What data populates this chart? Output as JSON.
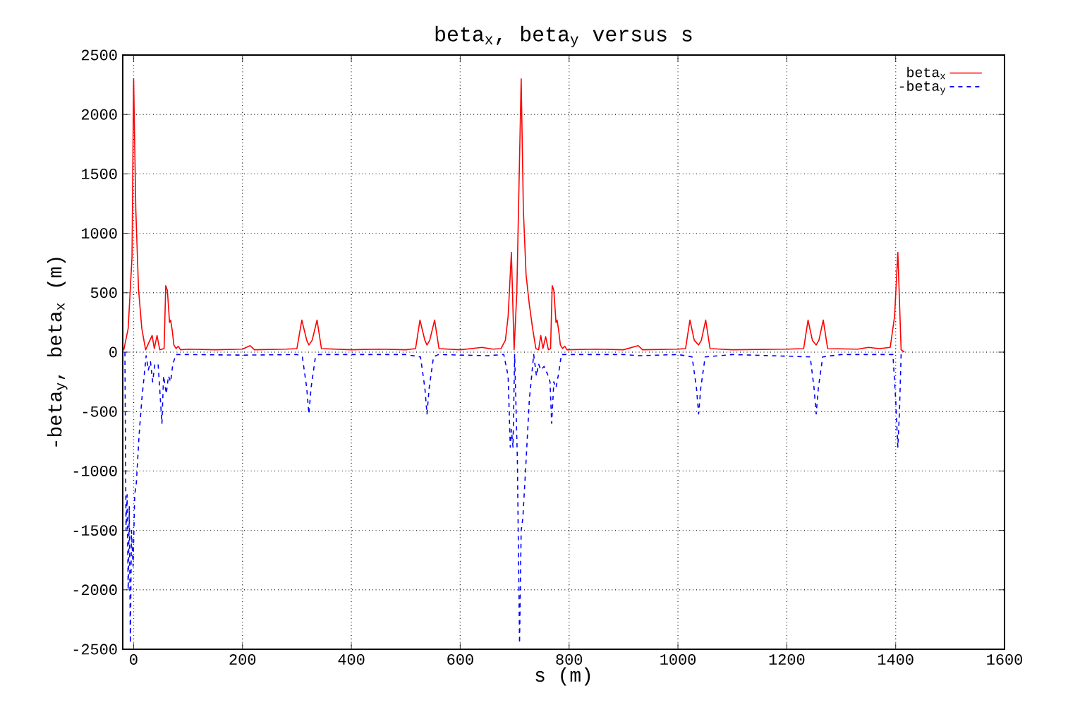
{
  "chart_data": {
    "type": "line",
    "title": "beta$_{x}$, beta$_{y}$ versus s",
    "xlabel": "s (m)",
    "ylabel": "-beta$_{y}$, beta$_{x}$ (m)",
    "xlim": [
      -20,
      1600
    ],
    "xticks": [
      0,
      200,
      400,
      600,
      800,
      1000,
      1200,
      1400,
      1600
    ],
    "ylim": [
      -2500,
      2500
    ],
    "yticks": [
      -2500,
      -2000,
      -1500,
      -1000,
      -500,
      0,
      500,
      1000,
      1500,
      2000,
      2500
    ],
    "grid": true,
    "legend": "top right",
    "series": [
      {
        "name": "beta$_{x}$",
        "color": "#ff0000",
        "line_style": "solid",
        "x": [
          -18,
          -10,
          -3,
          0,
          4,
          9,
          15,
          22,
          34,
          38,
          43,
          48,
          56,
          59,
          62,
          66,
          68,
          71,
          74,
          78,
          82,
          86,
          100,
          150,
          200,
          214,
          222,
          280,
          300,
          309,
          318,
          322,
          328,
          337,
          345,
          400,
          450,
          500,
          518,
          526,
          535,
          539,
          544,
          553,
          561,
          600,
          620,
          640,
          660,
          675,
          683,
          688,
          694,
          699,
          704,
          712,
          716,
          721,
          727,
          733,
          739,
          744,
          748,
          752,
          757,
          762,
          766,
          769,
          772,
          776,
          778,
          781,
          784,
          788,
          792,
          796,
          850,
          900,
          927,
          935,
          1000,
          1014,
          1022,
          1030,
          1038,
          1043,
          1051,
          1059,
          1100,
          1200,
          1231,
          1239,
          1247,
          1254,
          1259,
          1267,
          1275,
          1330,
          1350,
          1370,
          1390,
          1398,
          1404,
          1410,
          1416
        ],
        "values": [
          20,
          200,
          800,
          2300,
          1200,
          530,
          200,
          20,
          140,
          30,
          140,
          20,
          30,
          560,
          520,
          250,
          270,
          180,
          60,
          30,
          50,
          20,
          25,
          20,
          25,
          55,
          20,
          25,
          30,
          270,
          100,
          60,
          100,
          270,
          30,
          20,
          25,
          20,
          30,
          270,
          100,
          60,
          100,
          270,
          30,
          20,
          30,
          40,
          25,
          30,
          100,
          300,
          840,
          20,
          500,
          2300,
          1200,
          650,
          400,
          200,
          30,
          20,
          140,
          30,
          130,
          20,
          30,
          560,
          520,
          250,
          270,
          180,
          60,
          30,
          50,
          20,
          25,
          20,
          55,
          20,
          25,
          30,
          270,
          100,
          60,
          100,
          270,
          30,
          20,
          25,
          30,
          270,
          100,
          60,
          100,
          270,
          30,
          25,
          40,
          30,
          40,
          300,
          840,
          20,
          0
        ]
      },
      {
        "name": "-beta$_{y}$",
        "color": "#0000ff",
        "line_style": "dashed",
        "x": [
          -16,
          -14,
          -12,
          -10,
          -8,
          -6,
          -4,
          -1,
          2,
          5,
          10,
          15,
          23,
          27,
          31,
          35,
          39,
          45,
          52,
          55,
          60,
          64,
          68,
          72,
          78,
          100,
          200,
          300,
          310,
          318,
          322,
          326,
          334,
          340,
          500,
          527,
          535,
          539,
          543,
          551,
          560,
          650,
          680,
          688,
          692,
          694,
          697,
          700,
          705,
          709,
          712,
          715,
          720,
          727,
          735,
          740,
          744,
          748,
          754,
          760,
          765,
          768,
          772,
          776,
          780,
          786,
          900,
          930,
          1000,
          1026,
          1034,
          1038,
          1042,
          1050,
          1100,
          1243,
          1250,
          1254,
          1258,
          1266,
          1300,
          1395,
          1400,
          1404,
          1407,
          1410,
          1412
        ],
        "values": [
          0,
          -1500,
          -1200,
          -2000,
          -1300,
          -2450,
          -1500,
          -1800,
          -1200,
          -1100,
          -700,
          -400,
          -30,
          -150,
          -80,
          -250,
          -100,
          -100,
          -600,
          -200,
          -350,
          -200,
          -250,
          -100,
          -20,
          -20,
          -25,
          -20,
          -40,
          -300,
          -520,
          -300,
          -40,
          -20,
          -20,
          -40,
          -300,
          -520,
          -300,
          -40,
          -20,
          -30,
          -20,
          -200,
          -800,
          -650,
          -800,
          -20,
          -900,
          -2450,
          -1500,
          -1400,
          -1000,
          -400,
          -20,
          -200,
          -100,
          -150,
          -120,
          -180,
          -250,
          -600,
          -250,
          -300,
          -200,
          -20,
          -20,
          -30,
          -20,
          -40,
          -300,
          -520,
          -300,
          -40,
          -20,
          -40,
          -300,
          -520,
          -300,
          -40,
          -20,
          -20,
          -400,
          -800,
          -500,
          -20,
          0
        ]
      }
    ]
  }
}
